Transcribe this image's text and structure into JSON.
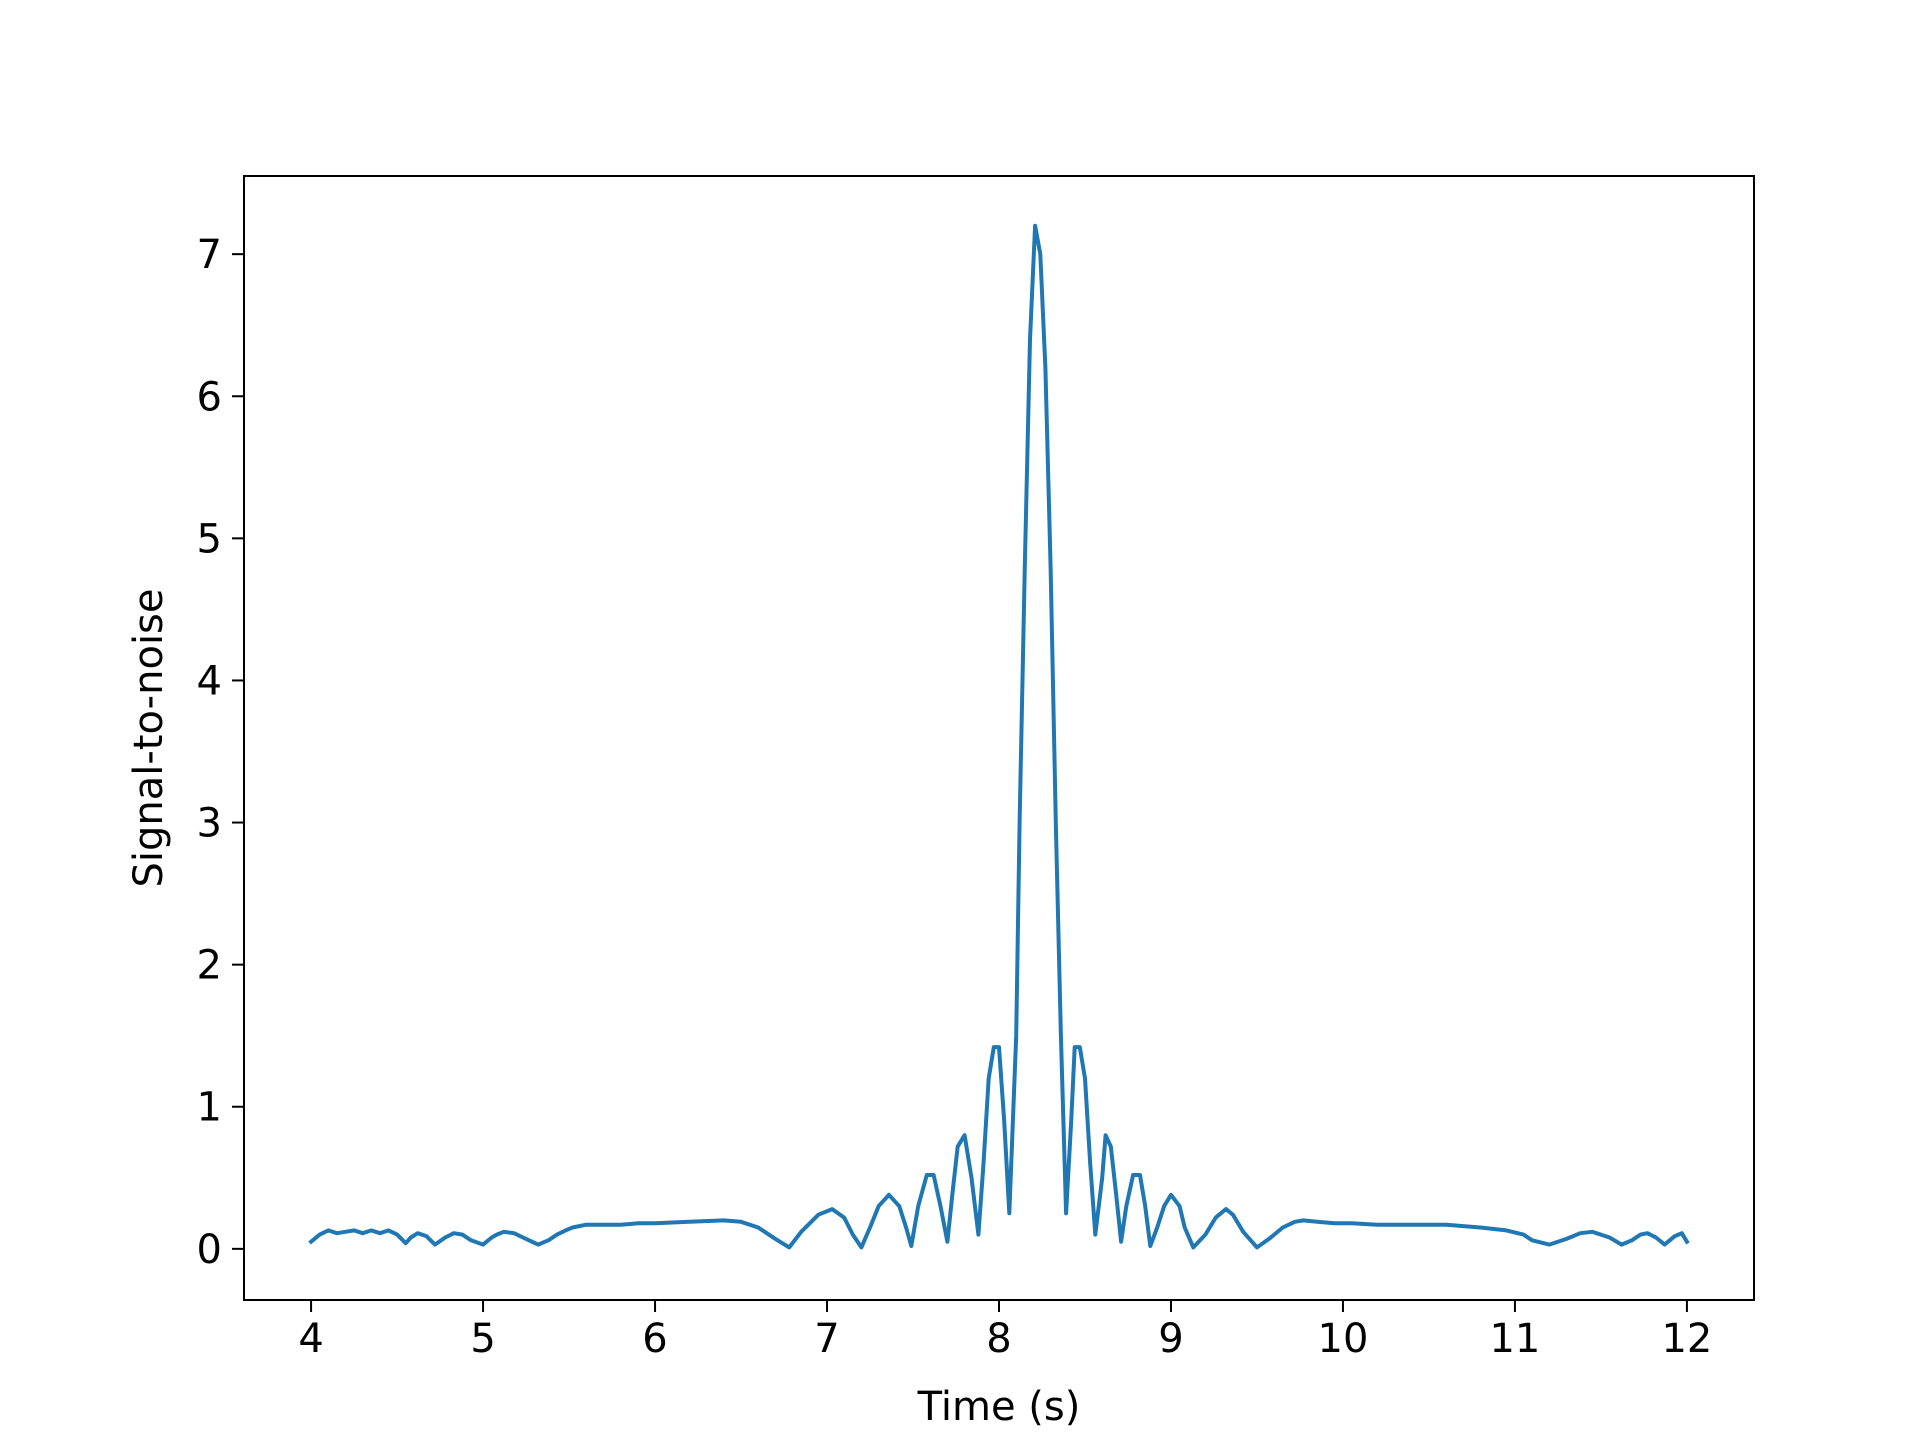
{
  "chart_data": {
    "type": "line",
    "title": "",
    "xlabel": "Time (s)",
    "ylabel": "Signal-to-noise",
    "xlim": [
      3.61,
      12.39
    ],
    "ylim": [
      -0.36,
      7.55
    ],
    "xticks": [
      4,
      5,
      6,
      7,
      8,
      9,
      10,
      11,
      12
    ],
    "yticks": [
      0,
      1,
      2,
      3,
      4,
      5,
      6,
      7
    ],
    "grid": false,
    "legend": "none",
    "line_color": "#1f77b4",
    "series": [
      {
        "x": [
          4.0,
          4.05,
          4.1,
          4.15,
          4.2,
          4.25,
          4.3,
          4.35,
          4.4,
          4.45,
          4.5,
          4.55,
          4.58,
          4.62,
          4.67,
          4.72,
          4.78,
          4.83,
          4.88,
          4.93,
          5.0,
          5.05,
          5.08,
          5.12,
          5.18,
          5.25,
          5.32,
          5.38,
          5.43,
          5.48,
          5.52,
          5.6,
          5.7,
          5.8,
          5.9,
          6.0,
          6.2,
          6.4,
          6.5,
          6.6,
          6.7,
          6.78,
          6.85,
          6.95,
          7.03,
          7.1,
          7.15,
          7.2,
          7.25,
          7.3,
          7.36,
          7.42,
          7.46,
          7.49,
          7.53,
          7.58,
          7.62,
          7.66,
          7.7,
          7.73,
          7.76,
          7.8,
          7.84,
          7.88,
          7.91,
          7.94,
          7.97,
          8.0,
          8.03,
          8.06,
          8.1,
          8.12,
          8.15,
          8.18,
          8.21,
          8.24,
          8.27,
          8.3,
          8.33,
          8.36,
          8.39,
          8.42,
          8.44,
          8.47,
          8.5,
          8.53,
          8.56,
          8.6,
          8.62,
          8.65,
          8.68,
          8.71,
          8.74,
          8.78,
          8.82,
          8.85,
          8.88,
          8.92,
          8.96,
          9.0,
          9.05,
          9.08,
          9.13,
          9.2,
          9.26,
          9.32,
          9.36,
          9.42,
          9.5,
          9.57,
          9.65,
          9.72,
          9.77,
          9.85,
          9.95,
          10.05,
          10.2,
          10.4,
          10.6,
          10.8,
          10.95,
          11.05,
          11.1,
          11.2,
          11.3,
          11.38,
          11.45,
          11.5,
          11.55,
          11.62,
          11.68,
          11.73,
          11.77,
          11.82,
          11.87,
          11.93,
          11.97,
          12.0
        ],
        "y": [
          0.05,
          0.1,
          0.13,
          0.11,
          0.12,
          0.13,
          0.11,
          0.13,
          0.11,
          0.13,
          0.1,
          0.04,
          0.08,
          0.11,
          0.09,
          0.03,
          0.08,
          0.11,
          0.1,
          0.06,
          0.03,
          0.08,
          0.1,
          0.12,
          0.11,
          0.07,
          0.03,
          0.06,
          0.1,
          0.13,
          0.15,
          0.17,
          0.17,
          0.17,
          0.18,
          0.18,
          0.19,
          0.2,
          0.19,
          0.15,
          0.07,
          0.01,
          0.12,
          0.24,
          0.28,
          0.22,
          0.1,
          0.01,
          0.15,
          0.3,
          0.38,
          0.3,
          0.15,
          0.02,
          0.3,
          0.52,
          0.52,
          0.3,
          0.05,
          0.4,
          0.72,
          0.8,
          0.5,
          0.1,
          0.6,
          1.2,
          1.42,
          1.42,
          0.9,
          0.25,
          1.5,
          3.0,
          4.8,
          6.4,
          7.2,
          7.0,
          6.2,
          4.8,
          3.0,
          1.5,
          0.25,
          0.9,
          1.42,
          1.42,
          1.2,
          0.6,
          0.1,
          0.5,
          0.8,
          0.72,
          0.4,
          0.05,
          0.3,
          0.52,
          0.52,
          0.3,
          0.02,
          0.15,
          0.3,
          0.38,
          0.3,
          0.15,
          0.01,
          0.1,
          0.22,
          0.28,
          0.24,
          0.12,
          0.01,
          0.07,
          0.15,
          0.19,
          0.2,
          0.19,
          0.18,
          0.18,
          0.17,
          0.17,
          0.17,
          0.15,
          0.13,
          0.1,
          0.06,
          0.03,
          0.07,
          0.11,
          0.12,
          0.1,
          0.08,
          0.03,
          0.06,
          0.1,
          0.11,
          0.08,
          0.03,
          0.09,
          0.11,
          0.05
        ]
      }
    ]
  }
}
